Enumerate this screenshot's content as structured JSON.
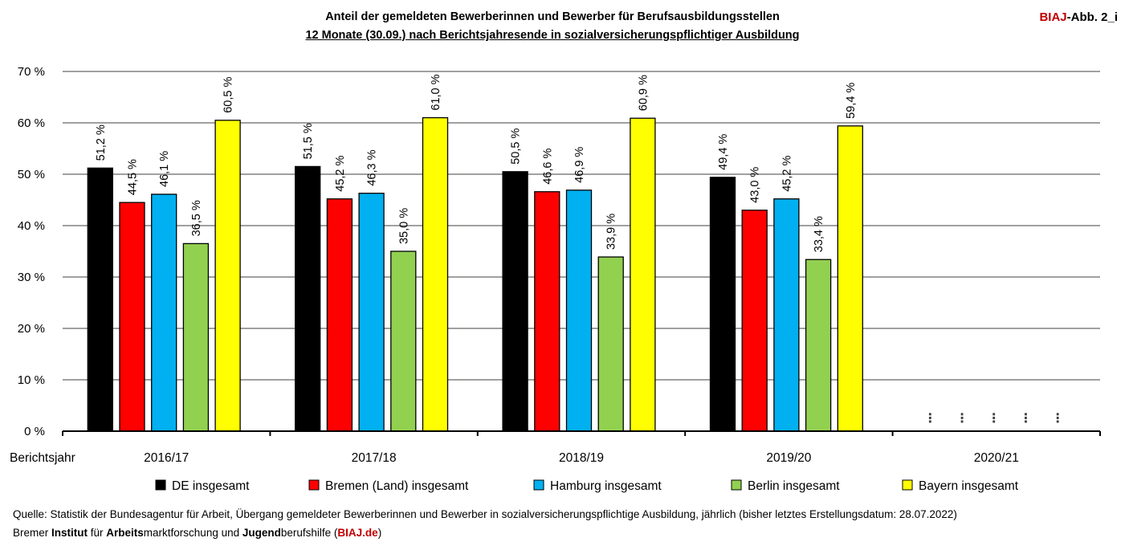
{
  "header": {
    "title_line1": "Anteil der gemeldeten Bewerberinnen und Bewerber für Berufsausbildungsstellen",
    "title_line2": "12 Monate (30.09.) nach Berichtsjahresende in sozialversicherungspflichtiger Ausbildung",
    "badge_brand": "BIAJ",
    "badge_suffix": "-Abb. 2_i"
  },
  "chart_data": {
    "type": "bar",
    "title": "Anteil der gemeldeten Bewerberinnen und Bewerber für Berufsausbildungsstellen 12 Monate (30.09.) nach Berichtsjahresende in sozialversicherungspflichtiger Ausbildung",
    "xlabel": "Berichtsjahr",
    "ylabel": "",
    "ylim": [
      0,
      70
    ],
    "yticks": [
      0,
      10,
      20,
      30,
      40,
      50,
      60,
      70
    ],
    "ytick_labels": [
      "0 %",
      "10 %",
      "20 %",
      "30 %",
      "40 %",
      "50 %",
      "60 %",
      "70 %"
    ],
    "grid": true,
    "legend_position": "bottom",
    "categories": [
      "2016/17",
      "2017/18",
      "2018/19",
      "2019/20",
      "2020/21"
    ],
    "missing_marker": "⋮",
    "series": [
      {
        "name": "DE insgesamt",
        "color": "#000000",
        "values": [
          51.2,
          51.5,
          50.5,
          49.4,
          null
        ],
        "labels": [
          "51,2 %",
          "51,5 %",
          "50,5 %",
          "49,4 %",
          null
        ]
      },
      {
        "name": "Bremen (Land) insgesamt",
        "color": "#ff0000",
        "values": [
          44.5,
          45.2,
          46.6,
          43.0,
          null
        ],
        "labels": [
          "44,5 %",
          "45,2 %",
          "46,6 %",
          "43,0 %",
          null
        ]
      },
      {
        "name": "Hamburg insgesamt",
        "color": "#00b0f0",
        "values": [
          46.1,
          46.3,
          46.9,
          45.2,
          null
        ],
        "labels": [
          "46,1 %",
          "46,3 %",
          "46,9 %",
          "45,2 %",
          null
        ]
      },
      {
        "name": "Berlin insgesamt",
        "color": "#92d050",
        "values": [
          36.5,
          35.0,
          33.9,
          33.4,
          null
        ],
        "labels": [
          "36,5 %",
          "35,0 %",
          "33,9 %",
          "33,4 %",
          null
        ]
      },
      {
        "name": "Bayern insgesamt",
        "color": "#ffff00",
        "values": [
          60.5,
          61.0,
          60.9,
          59.4,
          null
        ],
        "labels": [
          "60,5 %",
          "61,0 %",
          "60,9 %",
          "59,4 %",
          null
        ]
      }
    ]
  },
  "footer": {
    "source": "Quelle: Statistik der Bundesagentur für Arbeit, Übergang gemeldeter Bewerberinnen und Bewerber in sozialversicherungspflichtige Ausbildung, jährlich (bisher letztes Erstellungsdatum: 28.07.2022)",
    "inst_1": "Bremer ",
    "inst_2": "Institut",
    "inst_3": " für ",
    "inst_4": "Arbeits",
    "inst_5": "marktforschung und ",
    "inst_6": "Jugend",
    "inst_7": "berufshilfe (",
    "inst_8": "BIAJ.de",
    "inst_9": ")"
  }
}
